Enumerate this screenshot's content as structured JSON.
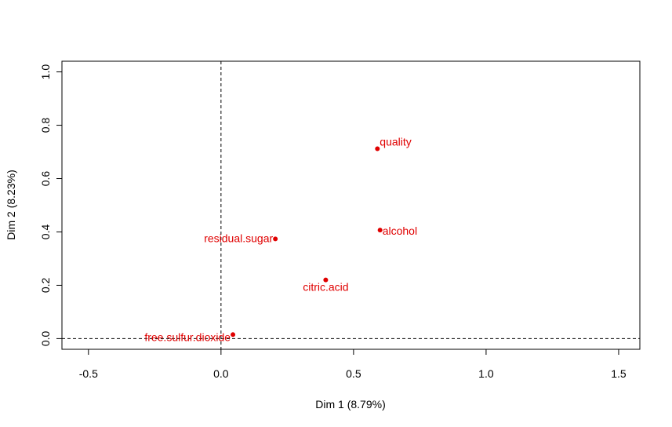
{
  "chart_data": {
    "type": "scatter",
    "title": "",
    "xlabel": "Dim 1 (8.79%)",
    "ylabel": "Dim 2 (8.23%)",
    "xlim": [
      -0.6,
      1.58
    ],
    "ylim": [
      -0.04,
      1.04
    ],
    "xticks": [
      -0.5,
      0.0,
      0.5,
      1.0,
      1.5
    ],
    "xtick_labels": [
      "-0.5",
      "0.0",
      "0.5",
      "1.0",
      "1.5"
    ],
    "yticks": [
      0.0,
      0.2,
      0.4,
      0.6,
      0.8,
      1.0
    ],
    "ytick_labels": [
      "0.0",
      "0.2",
      "0.4",
      "0.6",
      "0.8",
      "1.0"
    ],
    "reference_lines": {
      "x": 0,
      "y": 0,
      "style": "dashed"
    },
    "grid": false,
    "point_color": "#e00000",
    "points": [
      {
        "label": "quality",
        "x": 0.59,
        "y": 0.712,
        "label_side": "right-up"
      },
      {
        "label": "alcohol",
        "x": 0.6,
        "y": 0.407,
        "label_side": "right"
      },
      {
        "label": "residual.sugar",
        "x": 0.205,
        "y": 0.374,
        "label_side": "left"
      },
      {
        "label": "citric.acid",
        "x": 0.395,
        "y": 0.22,
        "label_side": "below"
      },
      {
        "label": "free.sulfur.dioxide",
        "x": 0.045,
        "y": 0.015,
        "label_side": "left-down"
      }
    ]
  }
}
